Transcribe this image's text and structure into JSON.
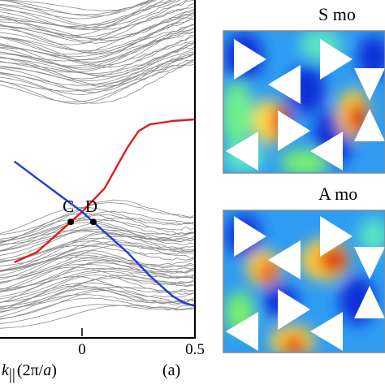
{
  "panel_a": {
    "panel_label": "(a)",
    "xlabel_symbol": "k",
    "xlabel_subscript": "||",
    "xlabel_units_open": "(2π/",
    "xlabel_units_var": "a",
    "xlabel_units_close": ")",
    "points": [
      {
        "label": "C",
        "k": -0.05
      },
      {
        "label": "D",
        "k": 0.05
      }
    ]
  },
  "panel_b": {
    "title": "S mo"
  },
  "panel_c": {
    "title": "A mo"
  },
  "colors": {
    "bulk": "#8a8a8a",
    "edge_red": "#e41a1c",
    "edge_blue": "#1f3fd0"
  },
  "chart_data": {
    "type": "line",
    "xlim": [
      -0.5,
      0.5
    ],
    "x_ticks": [
      {
        "value": 0,
        "label": "0"
      },
      {
        "value": 0.5,
        "label": "0.5"
      }
    ],
    "ylim": [
      0,
      1
    ],
    "grid": false,
    "series": [
      {
        "color": "#e41a1c",
        "x": [
          -0.3,
          -0.2,
          -0.1,
          0.0,
          0.1,
          0.2,
          0.25,
          0.3,
          0.4,
          0.5
        ],
        "y": [
          0.22,
          0.25,
          0.31,
          0.37,
          0.44,
          0.56,
          0.61,
          0.63,
          0.64,
          0.645
        ]
      },
      {
        "color": "#1f3fd0",
        "x": [
          -0.3,
          -0.2,
          -0.1,
          0.0,
          0.1,
          0.2,
          0.3,
          0.4,
          0.45,
          0.5
        ],
        "y": [
          0.52,
          0.47,
          0.42,
          0.37,
          0.31,
          0.25,
          0.18,
          0.12,
          0.1,
          0.09
        ]
      }
    ]
  }
}
